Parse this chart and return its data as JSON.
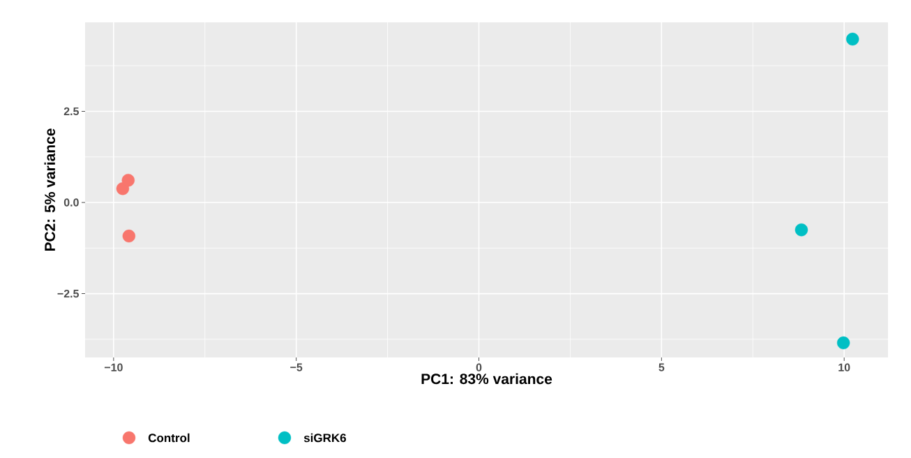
{
  "chart_data": {
    "type": "scatter",
    "xlabel": "PC1: 83% variance",
    "ylabel": "PC2: 5% variance",
    "xlim": [
      -10.78,
      11.2
    ],
    "ylim": [
      -4.25,
      4.94
    ],
    "xticks": [
      {
        "value": -10,
        "label": "−10"
      },
      {
        "value": -7.5,
        "label": null
      },
      {
        "value": -5,
        "label": "−5"
      },
      {
        "value": -2.5,
        "label": null
      },
      0,
      {
        "value": 2.5,
        "label": null
      },
      5,
      {
        "value": 7.5,
        "label": null
      },
      10
    ],
    "yticks": [
      {
        "value": -3.75,
        "label": null
      },
      {
        "value": -2.5,
        "label": "−2.5"
      },
      {
        "value": -1.25,
        "label": null
      },
      {
        "value": 0,
        "label": "0.0"
      },
      {
        "value": 1.25,
        "label": null
      },
      2.5,
      {
        "value": 3.75,
        "label": null
      }
    ],
    "grid": true,
    "legend": "bottom",
    "marker": "circle",
    "series": [
      {
        "name": "Control",
        "color": "#f8766d",
        "x": [
          -9.75,
          -9.6,
          -9.58
        ],
        "values": [
          0.38,
          0.61,
          -0.92
        ]
      },
      {
        "name": "siGRK6",
        "color": "#00bfc4",
        "x": [
          10.23,
          8.83,
          9.98
        ],
        "values": [
          4.48,
          -0.75,
          -3.85
        ]
      }
    ]
  }
}
